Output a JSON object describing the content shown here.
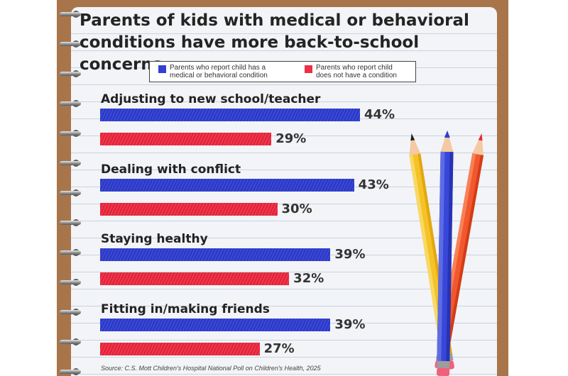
{
  "title_line1": "Parents of kids with medical or behavioral",
  "title_line2": "conditions have more back-to-school concerns",
  "legend": [
    {
      "label": "Parents who report child has a\nmedical or behavioral condition",
      "color": "#3340d4"
    },
    {
      "label": "Parents who report child\ndoes not have a condition",
      "color": "#ee2e44"
    }
  ],
  "source": "Source: C.S. Mott Children's Hospital National Poll on Children's Health, 2025",
  "colors": {
    "blue": "#3340d4",
    "red": "#ee2e44",
    "board": "#a8754a"
  },
  "chart_data": {
    "type": "bar",
    "orientation": "horizontal",
    "categories": [
      "Adjusting to new school/teacher",
      "Dealing with conflict",
      "Staying healthy",
      "Fitting in/making friends"
    ],
    "series": [
      {
        "name": "Parents who report child has a medical or behavioral condition",
        "values": [
          44,
          43,
          39,
          39
        ]
      },
      {
        "name": "Parents who report child does not have a condition",
        "values": [
          29,
          30,
          32,
          27
        ]
      }
    ],
    "value_labels": [
      [
        "44%",
        "43%",
        "39%",
        "39%"
      ],
      [
        "29%",
        "30%",
        "32%",
        "27%"
      ]
    ],
    "unit": "%",
    "xlim": [
      0,
      100
    ],
    "legend_position": "top"
  }
}
